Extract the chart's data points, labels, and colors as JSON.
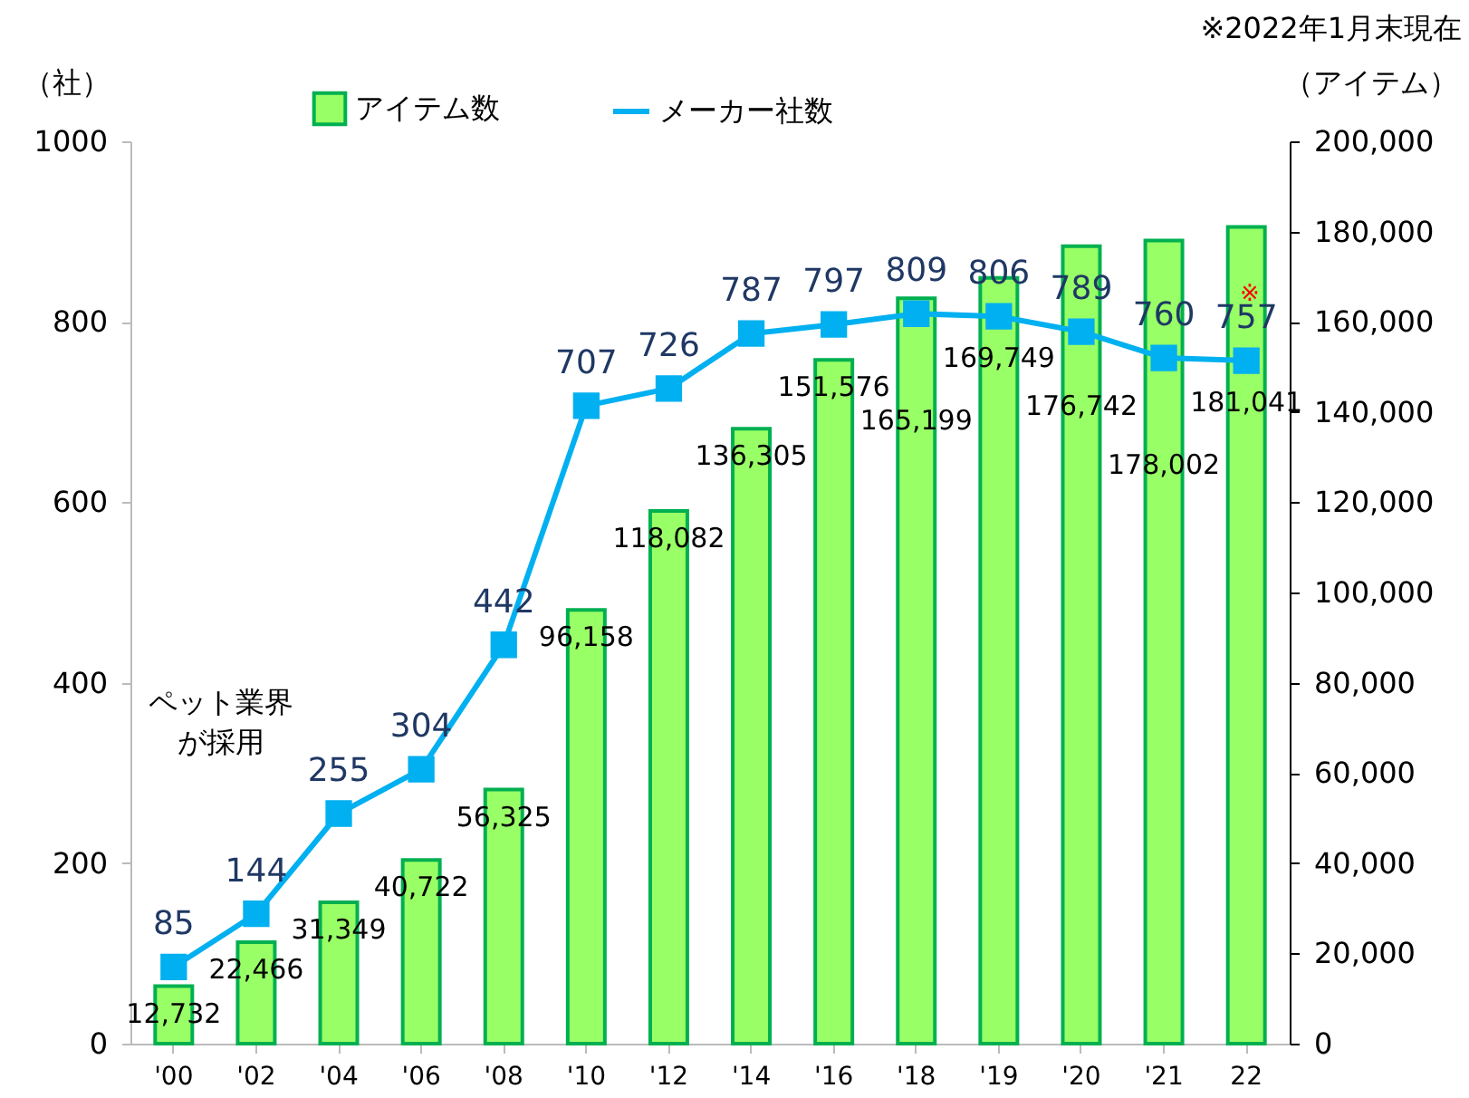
{
  "chart_data": {
    "type": "bar",
    "ylabel": "（社）",
    "y2label": "（アイテム）",
    "categories": [
      "'00",
      "'02",
      "'04",
      "'06",
      "'08",
      "'10",
      "'12",
      "'14",
      "'16",
      "'18",
      "'19",
      "'20",
      "'21",
      "22"
    ],
    "series": [
      {
        "name": "アイテム数",
        "type": "bar",
        "axis": "y2",
        "color": "#99ff66",
        "values": [
          12732,
          22466,
          31349,
          40722,
          56325,
          96158,
          118082,
          136305,
          151576,
          165199,
          169749,
          176742,
          178002,
          181041
        ],
        "value_labels": [
          "12,732",
          "22,466",
          "31,349",
          "40,722",
          "56,325",
          "96,158",
          "118,082",
          "136,305",
          "151,576",
          "165,199",
          "169,749",
          "176,742",
          "178,002",
          "181,041"
        ]
      },
      {
        "name": "メーカー社数",
        "type": "line",
        "color": "#00b0f0",
        "marker": "square",
        "values": [
          85,
          144,
          255,
          304,
          442,
          707,
          726,
          787,
          797,
          809,
          806,
          789,
          760,
          757
        ],
        "value_labels": [
          "85",
          "144",
          "255",
          "304",
          "442",
          "707",
          "726",
          "787",
          "797",
          "809",
          "806",
          "789",
          "760",
          "757"
        ]
      }
    ],
    "ylim": [
      0,
      1000
    ],
    "yticks": [
      0,
      200,
      400,
      600,
      800,
      1000
    ],
    "y2lim": [
      0,
      200000
    ],
    "y2ticks": [
      {
        "value": 0,
        "label": "0"
      },
      {
        "value": 20000,
        "label": "20,000"
      },
      {
        "value": 40000,
        "label": "40,000"
      },
      {
        "value": 60000,
        "label": "60,000"
      },
      {
        "value": 80000,
        "label": "80,000"
      },
      {
        "value": 100000,
        "label": "100,000"
      },
      {
        "value": 120000,
        "label": "120,000"
      },
      {
        "value": 140000,
        "label": "140,000"
      },
      {
        "value": 160000,
        "label": "160,000"
      },
      {
        "value": 180000,
        "label": "180,000"
      },
      {
        "value": 200000,
        "label": "200,000"
      }
    ],
    "legend": "top left",
    "grid": false,
    "annotations": [
      "※2022年1月末現在",
      "ペット業界が採用",
      "※"
    ]
  }
}
